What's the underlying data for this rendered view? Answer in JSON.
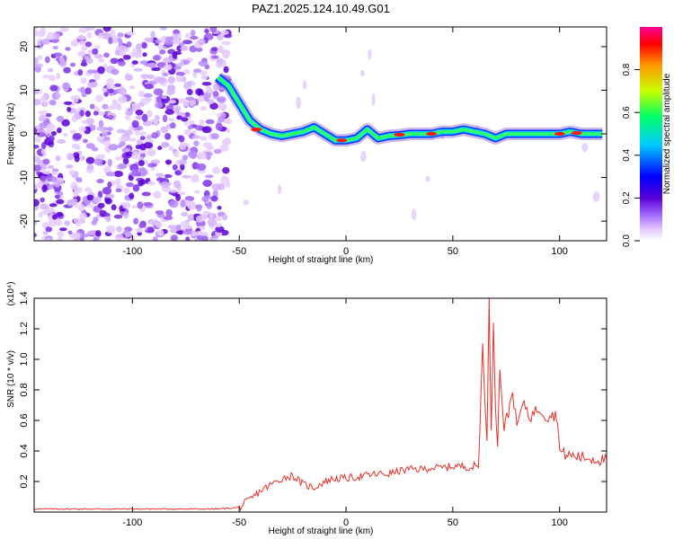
{
  "figure": {
    "title": "PAZ1.2025.124.10.49.G01"
  },
  "chart_data": [
    {
      "type": "heatmap",
      "xlabel": "Height of straight line (km)",
      "ylabel": "Frequency (Hz)",
      "xlim": [
        -146,
        122
      ],
      "ylim": [
        -24.5,
        24.5
      ],
      "xticks": [
        -100,
        -50,
        0,
        50,
        100
      ],
      "yticks": [
        -20,
        -10,
        0,
        10,
        20
      ],
      "grid": false,
      "colorbar": {
        "label": "Normalized spectral amplitude",
        "range": [
          0.0,
          1.0
        ],
        "ticks": [
          0.0,
          0.2,
          0.4,
          0.6,
          0.8
        ],
        "colormap": [
          "#ffffff",
          "#e6ccff",
          "#a36bff",
          "#5a00d6",
          "#0000ff",
          "#00ccff",
          "#00ff66",
          "#c8ff00",
          "#ff9900",
          "#ff0000",
          "#ff0099"
        ]
      },
      "ridge": {
        "name": "",
        "x": [
          -60,
          -55,
          -50,
          -45,
          -40,
          -35,
          -30,
          -25,
          -20,
          -15,
          -10,
          -5,
          0,
          5,
          10,
          15,
          20,
          25,
          30,
          35,
          40,
          45,
          50,
          55,
          60,
          65,
          70,
          75,
          80,
          85,
          90,
          95,
          100,
          105,
          110,
          115,
          120
        ],
        "frequency": [
          13,
          11,
          7,
          3,
          1,
          0,
          -0.5,
          0,
          0.5,
          1.5,
          0,
          -1.5,
          -1.5,
          -1,
          1,
          -1,
          -0.5,
          -0.3,
          0,
          0,
          0,
          0.5,
          0.5,
          1,
          0.5,
          0,
          -1,
          0,
          0,
          0,
          0,
          0,
          0,
          0.5,
          0,
          0,
          0
        ]
      },
      "noise_region_x": [
        -146,
        -55
      ]
    },
    {
      "type": "line",
      "xlabel": "Height of straight line (km)",
      "ylabel": "SNR (10 * v/v)",
      "yscale_label": "(x10⁴)",
      "xlim": [
        -146,
        122
      ],
      "ylim": [
        0,
        1.4
      ],
      "xticks": [
        -100,
        -50,
        0,
        50,
        100
      ],
      "yticks": [
        0.2,
        0.4,
        0.6,
        0.8,
        1.0,
        1.2,
        1.4
      ],
      "grid": false,
      "series": [
        {
          "name": "",
          "color": "#e8302a",
          "x": [
            -146,
            -120,
            -100,
            -80,
            -60,
            -50,
            -45,
            -40,
            -35,
            -30,
            -25,
            -20,
            -15,
            -10,
            -5,
            0,
            5,
            10,
            15,
            20,
            25,
            30,
            35,
            40,
            45,
            50,
            55,
            60,
            62,
            64,
            66,
            67,
            68,
            69,
            70,
            71,
            72,
            74,
            76,
            78,
            80,
            82,
            84,
            86,
            88,
            90,
            92,
            94,
            96,
            98,
            99,
            100,
            102,
            105,
            110,
            115,
            120,
            122
          ],
          "y": [
            0.02,
            0.02,
            0.02,
            0.02,
            0.02,
            0.03,
            0.08,
            0.14,
            0.18,
            0.22,
            0.24,
            0.18,
            0.16,
            0.2,
            0.22,
            0.22,
            0.23,
            0.24,
            0.25,
            0.25,
            0.27,
            0.28,
            0.28,
            0.29,
            0.29,
            0.3,
            0.3,
            0.29,
            0.3,
            1.1,
            0.45,
            1.38,
            0.5,
            1.25,
            0.7,
            0.45,
            0.95,
            0.55,
            0.65,
            0.8,
            0.55,
            0.68,
            0.7,
            0.62,
            0.65,
            0.68,
            0.66,
            0.62,
            0.64,
            0.63,
            0.62,
            0.4,
            0.38,
            0.37,
            0.36,
            0.35,
            0.34,
            0.35
          ]
        }
      ]
    }
  ]
}
